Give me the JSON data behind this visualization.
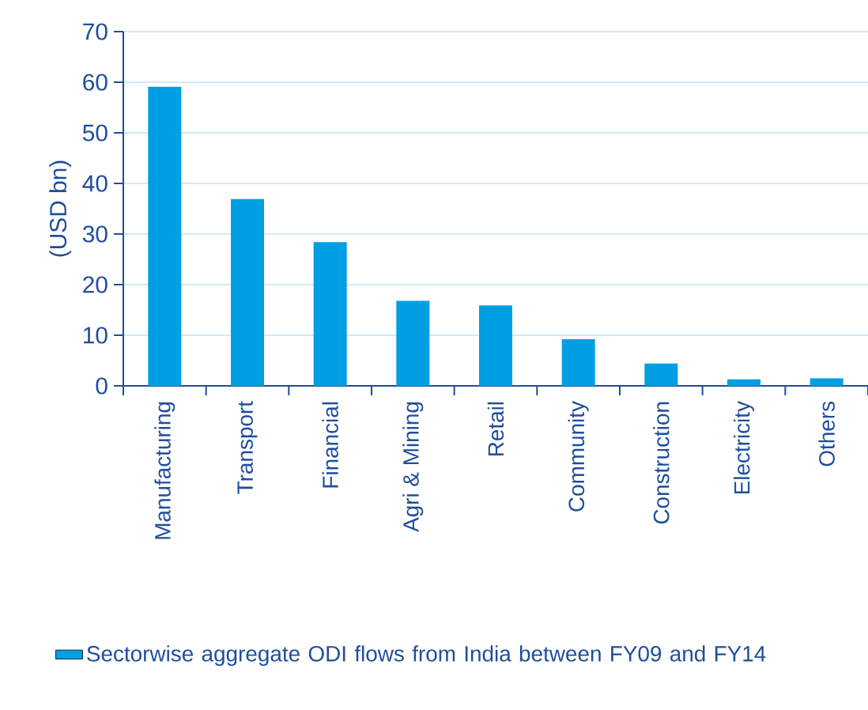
{
  "chart_data": {
    "type": "bar",
    "ylabel": "(USD bn)",
    "categories": [
      "Manufacturing",
      "Transport",
      "Financial",
      "Agri & Mining",
      "Retail",
      "Community",
      "Construction",
      "Electricity",
      "Others"
    ],
    "series": [
      {
        "name": "Sectorwise aggregate ODI flows from India between FY09 and FY14",
        "color": "#009fe3",
        "values": [
          59.1,
          36.9,
          28.4,
          16.8,
          15.9,
          9.2,
          4.4,
          1.3,
          1.5
        ]
      }
    ],
    "ylim": [
      0,
      70
    ],
    "yticks": [
      0,
      10,
      20,
      30,
      40,
      50,
      60,
      70
    ],
    "grid": "y",
    "legend": "bottom"
  }
}
